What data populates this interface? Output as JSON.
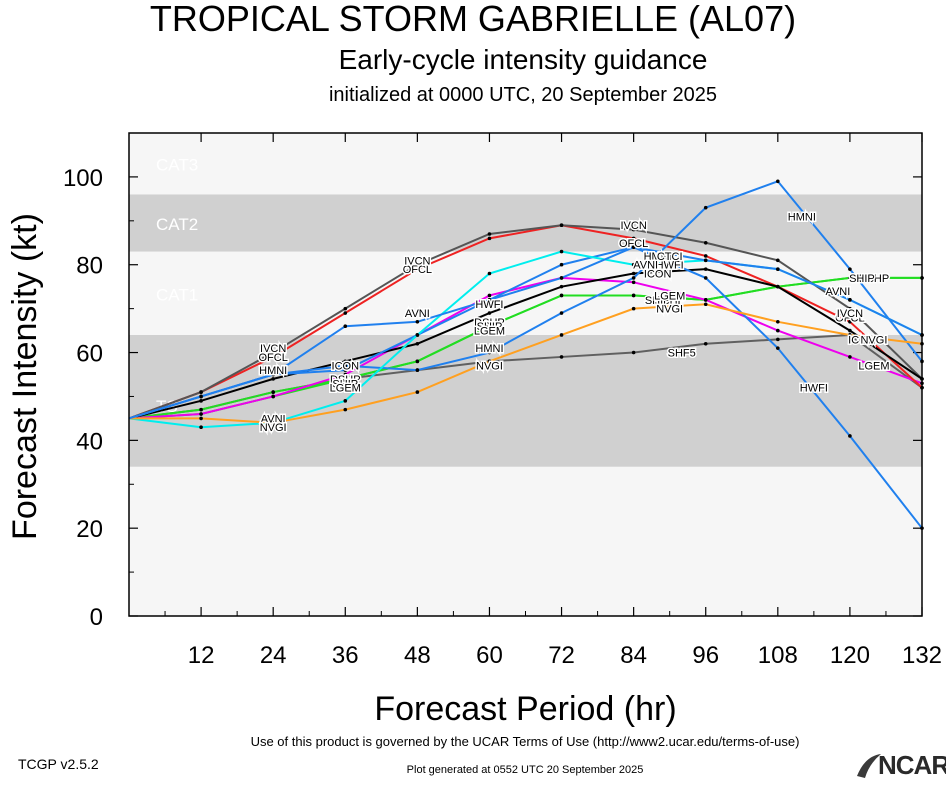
{
  "header": {
    "title": "TROPICAL STORM GABRIELLE (AL07)",
    "subtitle": "Early-cycle intensity guidance",
    "init": "initialized at 0000 UTC, 20 September 2025"
  },
  "footer": {
    "version": "TCGP v2.5.2",
    "terms": "Use of this product is governed by the UCAR Terms of Use (http://www2.ucar.edu/terms-of-use)",
    "generated": "Plot generated at 0552 UTC   20 September 2025",
    "logo_text": "NCAR"
  },
  "colors": {
    "band_light": "#f6f6f6",
    "band_dark": "#d0d0d0",
    "band_label": "#ffffff"
  },
  "chart_data": {
    "type": "line",
    "xlabel": "Forecast Period (hr)",
    "ylabel": "Forecast Intensity (kt)",
    "xlim": [
      0,
      132
    ],
    "ylim": [
      0,
      110
    ],
    "xticks": [
      12,
      24,
      36,
      48,
      60,
      72,
      84,
      96,
      108,
      120,
      132
    ],
    "yticks": [
      0,
      20,
      40,
      60,
      80,
      100
    ],
    "bands": [
      {
        "label": "TS",
        "from": 34,
        "to": 64,
        "shade": "dark"
      },
      {
        "label": "CAT1",
        "from": 64,
        "to": 83,
        "shade": "light"
      },
      {
        "label": "CAT2",
        "from": 83,
        "to": 96,
        "shade": "dark"
      },
      {
        "label": "CAT3",
        "from": 96,
        "to": 110,
        "shade": "light"
      }
    ],
    "series": [
      {
        "name": "SHF5",
        "color": "#606060",
        "x": [
          0,
          12,
          24,
          36,
          48,
          60,
          72,
          84,
          96,
          108,
          120,
          132
        ],
        "y": [
          45,
          47,
          51,
          54,
          56,
          58,
          59,
          60,
          62,
          63,
          64,
          52
        ],
        "labels": [
          [
            92,
            60
          ]
        ]
      },
      {
        "name": "DSHP",
        "color": "#22dd22",
        "x": [
          0,
          12,
          24,
          36,
          48,
          60,
          72,
          84,
          96,
          108,
          120,
          132
        ],
        "y": [
          45,
          47,
          51,
          54,
          58,
          66,
          73,
          73,
          72,
          75,
          77,
          77
        ],
        "labels": [
          [
            36,
            54
          ],
          [
            60,
            67
          ],
          [
            90,
            72
          ],
          [
            124,
            77
          ]
        ]
      },
      {
        "name": "SHIP",
        "color": "#22dd22",
        "x": [
          0,
          12,
          24,
          36,
          48,
          60,
          72,
          84,
          96,
          108,
          120,
          132
        ],
        "y": [
          45,
          46,
          50,
          54,
          58,
          66,
          73,
          73,
          72,
          75,
          77,
          77
        ],
        "labels": [
          [
            36,
            53
          ],
          [
            60,
            66
          ],
          [
            88,
            72
          ],
          [
            122,
            77
          ]
        ]
      },
      {
        "name": "LGEM",
        "color": "#ee00ee",
        "x": [
          0,
          12,
          24,
          36,
          48,
          60,
          72,
          84,
          96,
          108,
          120,
          132
        ],
        "y": [
          45,
          46,
          50,
          55,
          64,
          73,
          77,
          76,
          72,
          65,
          59,
          53
        ],
        "labels": [
          [
            36,
            52
          ],
          [
            60,
            65
          ],
          [
            90,
            73
          ],
          [
            124,
            57
          ]
        ]
      },
      {
        "name": "OFCL",
        "color": "#ee2222",
        "x": [
          0,
          12,
          24,
          36,
          48,
          60,
          72,
          84,
          96,
          108,
          120,
          132
        ],
        "y": [
          45,
          51,
          59,
          69,
          79,
          86,
          89,
          86,
          82,
          75,
          67,
          52
        ],
        "labels": [
          [
            24,
            59
          ],
          [
            48,
            79
          ],
          [
            84,
            85
          ],
          [
            120,
            68
          ]
        ]
      },
      {
        "name": "IVCN",
        "color": "#555555",
        "x": [
          0,
          12,
          24,
          36,
          48,
          60,
          72,
          84,
          96,
          108,
          120,
          132
        ],
        "y": [
          45,
          51,
          60,
          70,
          80,
          87,
          89,
          88,
          85,
          81,
          70,
          54
        ],
        "labels": [
          [
            24,
            61
          ],
          [
            48,
            81
          ],
          [
            84,
            89
          ],
          [
            120,
            69
          ]
        ]
      },
      {
        "name": "ICON",
        "color": "#000000",
        "x": [
          0,
          12,
          24,
          36,
          48,
          60,
          72,
          84,
          96,
          108,
          120,
          132
        ],
        "y": [
          45,
          49,
          54,
          58,
          62,
          69,
          75,
          78,
          79,
          75,
          65,
          54
        ],
        "labels": [
          [
            36,
            57
          ],
          [
            88,
            78
          ],
          [
            122,
            63
          ]
        ]
      },
      {
        "name": "HWFI",
        "color": "#2080ee",
        "x": [
          0,
          12,
          24,
          36,
          48,
          60,
          72,
          84,
          96,
          108,
          120,
          132
        ],
        "y": [
          45,
          50,
          55,
          56,
          64,
          72,
          80,
          84,
          77,
          61,
          41,
          20
        ],
        "labels": [
          [
            60,
            71
          ],
          [
            90,
            80
          ],
          [
            114,
            52
          ]
        ]
      },
      {
        "name": "HMNI",
        "color": "#2080ee",
        "x": [
          0,
          12,
          24,
          36,
          48,
          60,
          72,
          84,
          96,
          108,
          120,
          132
        ],
        "y": [
          45,
          50,
          55,
          57,
          56,
          60,
          69,
          77,
          93,
          99,
          79,
          58
        ],
        "labels": [
          [
            24,
            56
          ],
          [
            60,
            61
          ],
          [
            88,
            82
          ],
          [
            112,
            91
          ]
        ]
      },
      {
        "name": "AVNI",
        "color": "#00eeee",
        "x": [
          0,
          12,
          24,
          36,
          48,
          60,
          72,
          84,
          96,
          108,
          120,
          132
        ],
        "y": [
          45,
          43,
          44,
          49,
          64,
          78,
          83,
          80,
          81,
          79,
          72,
          64
        ],
        "labels": [
          [
            24,
            45
          ],
          [
            48,
            69
          ],
          [
            86,
            80
          ],
          [
            118,
            74
          ]
        ]
      },
      {
        "name": "NVGI",
        "color": "#ffa020",
        "x": [
          0,
          12,
          24,
          36,
          48,
          60,
          72,
          84,
          96,
          108,
          120,
          132
        ],
        "y": [
          45,
          45,
          44,
          47,
          51,
          58,
          64,
          70,
          71,
          67,
          64,
          62
        ],
        "labels": [
          [
            24,
            43
          ],
          [
            60,
            57
          ],
          [
            90,
            70
          ],
          [
            124,
            63
          ]
        ]
      },
      {
        "name": "CTCI",
        "color": "#2080ee",
        "x": [
          0,
          12,
          24,
          36,
          48,
          60,
          72,
          84,
          96,
          108,
          120,
          132
        ],
        "y": [
          45,
          50,
          55,
          66,
          67,
          72,
          77,
          84,
          81,
          79,
          72,
          64
        ],
        "labels": [
          [
            90,
            82
          ]
        ]
      }
    ]
  }
}
